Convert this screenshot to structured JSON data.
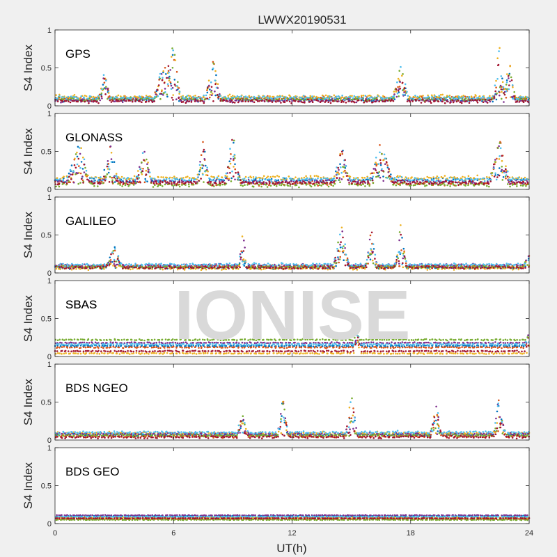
{
  "chart_data": {
    "type": "scatter",
    "title": "LWWX20190531",
    "xlabel": "UT(h)",
    "ylabel": "S4 Index",
    "xlim": [
      0,
      24
    ],
    "ylim": [
      0,
      1
    ],
    "xticks": [
      0,
      6,
      12,
      18,
      24
    ],
    "yticks": [
      0,
      0.5,
      1
    ],
    "grid": false,
    "watermark": "IONISE",
    "series_colors": [
      "#0072BD",
      "#D95319",
      "#EDB120",
      "#7E2F8E",
      "#77AC30",
      "#4DBEEE",
      "#A2142F"
    ],
    "panels": [
      {
        "label": "GPS",
        "baseline": [
          0.08,
          0.1,
          0.12,
          0.07,
          0.09,
          0.11,
          0.06
        ],
        "noise": 0.035,
        "activity": [
          [
            2.5,
            0.45,
            0.3
          ],
          [
            5.5,
            0.6,
            0.5
          ],
          [
            6.0,
            0.85,
            0.35
          ],
          [
            8.0,
            0.6,
            0.4
          ],
          [
            17.5,
            0.55,
            0.4
          ],
          [
            22.5,
            0.85,
            0.3
          ],
          [
            23.0,
            0.65,
            0.3
          ]
        ]
      },
      {
        "label": "GLONASS",
        "baseline": [
          0.12,
          0.08,
          0.15,
          0.1,
          0.06,
          0.13,
          0.09
        ],
        "noise": 0.04,
        "activity": [
          [
            1.2,
            0.65,
            0.6
          ],
          [
            2.8,
            0.6,
            0.4
          ],
          [
            4.5,
            0.6,
            0.4
          ],
          [
            7.5,
            0.7,
            0.3
          ],
          [
            9.0,
            0.75,
            0.4
          ],
          [
            14.5,
            0.6,
            0.4
          ],
          [
            16.5,
            0.65,
            0.6
          ],
          [
            22.5,
            0.7,
            0.5
          ]
        ]
      },
      {
        "label": "GALILEO",
        "baseline": [
          0.07,
          0.09,
          0.06,
          0.1,
          0.08,
          0.11,
          0.07
        ],
        "noise": 0.025,
        "activity": [
          [
            3.0,
            0.38,
            0.4
          ],
          [
            9.5,
            0.62,
            0.2
          ],
          [
            14.5,
            0.65,
            0.4
          ],
          [
            16.0,
            0.6,
            0.3
          ],
          [
            17.5,
            0.65,
            0.3
          ],
          [
            24.0,
            0.3,
            0.3
          ]
        ]
      },
      {
        "label": "SBAS",
        "baseline": [
          0.14,
          0.12,
          0.04,
          0.18,
          0.22,
          0.16,
          0.07
        ],
        "noise": 0.012,
        "activity": [
          [
            15.3,
            0.33,
            0.2
          ],
          [
            24.0,
            0.33,
            0.2
          ]
        ]
      },
      {
        "label": "BDS NGEO",
        "baseline": [
          0.07,
          0.05,
          0.09,
          0.08,
          0.06,
          0.1,
          0.04
        ],
        "noise": 0.025,
        "activity": [
          [
            9.5,
            0.35,
            0.3
          ],
          [
            11.5,
            0.65,
            0.3
          ],
          [
            15.0,
            0.62,
            0.3
          ],
          [
            19.3,
            0.5,
            0.3
          ],
          [
            22.5,
            0.65,
            0.3
          ]
        ]
      },
      {
        "label": "BDS GEO",
        "baseline": [
          0.1,
          0.06,
          0.08,
          0.11,
          0.05,
          0.09,
          0.07
        ],
        "noise": 0.006,
        "activity": []
      }
    ]
  }
}
